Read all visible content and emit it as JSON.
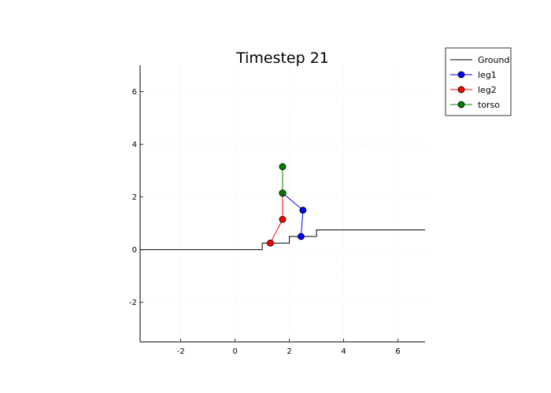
{
  "chart_data": {
    "type": "line",
    "title": "Timestep 21",
    "xlabel": "",
    "ylabel": "",
    "xlim": [
      -3.5,
      7
    ],
    "ylim": [
      -3.5,
      7
    ],
    "xticks": [
      -2,
      0,
      2,
      4,
      6
    ],
    "yticks": [
      -2,
      0,
      2,
      4,
      6
    ],
    "grid": true,
    "legend_position": "top-right outside",
    "series": [
      {
        "name": "Ground",
        "color": "#000000",
        "markers": false,
        "x": [
          -3.5,
          1.0,
          1.0,
          2.0,
          2.0,
          3.0,
          3.0,
          7.0
        ],
        "y": [
          0.0,
          0.0,
          0.25,
          0.25,
          0.5,
          0.5,
          0.75,
          0.75
        ]
      },
      {
        "name": "leg1",
        "color": "#0000ff",
        "markers": true,
        "x": [
          1.75,
          2.5,
          2.43
        ],
        "y": [
          2.15,
          1.5,
          0.5
        ]
      },
      {
        "name": "leg2",
        "color": "#ff0000",
        "markers": true,
        "x": [
          1.75,
          1.75,
          1.3
        ],
        "y": [
          2.15,
          1.15,
          0.25
        ]
      },
      {
        "name": "torso",
        "color": "#008000",
        "markers": true,
        "x": [
          1.75,
          1.75
        ],
        "y": [
          2.15,
          3.15
        ]
      }
    ]
  }
}
